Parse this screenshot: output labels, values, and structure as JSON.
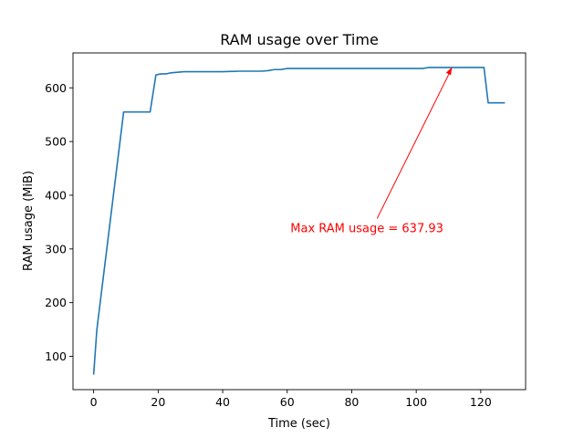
{
  "chart_data": {
    "type": "line",
    "title": "RAM usage over Time",
    "xlabel": "Time (sec)",
    "ylabel": "RAM usage (MiB)",
    "xlim": [
      -6.4,
      133.9
    ],
    "ylim": [
      38,
      665
    ],
    "xticks": [
      0,
      20,
      40,
      60,
      80,
      100,
      120
    ],
    "yticks": [
      100,
      200,
      300,
      400,
      500,
      600
    ],
    "grid": false,
    "series": [
      {
        "color": "#1f77b4",
        "x": [
          0,
          1,
          9.3,
          10,
          17.5,
          19.3,
          20,
          21,
          22.5,
          24,
          26,
          28,
          30,
          35,
          40,
          45,
          50,
          52,
          54,
          56,
          58,
          60,
          70,
          80,
          90,
          100,
          102,
          104,
          110,
          115,
          121,
          122.3,
          123,
          127.5
        ],
        "y": [
          66,
          150,
          555,
          555,
          555,
          624,
          625,
          626,
          626,
          628,
          629,
          630,
          630,
          630,
          630,
          631,
          631,
          631,
          632,
          634,
          634,
          636,
          636,
          636,
          636,
          636,
          636,
          638,
          638,
          638,
          638,
          572,
          572,
          572
        ]
      }
    ],
    "annotations": [
      {
        "text": "Max RAM usage = 637.93",
        "color": "#ff0000",
        "xy": [
          111,
          637.93
        ],
        "text_xy": [
          61,
          338
        ]
      }
    ]
  }
}
